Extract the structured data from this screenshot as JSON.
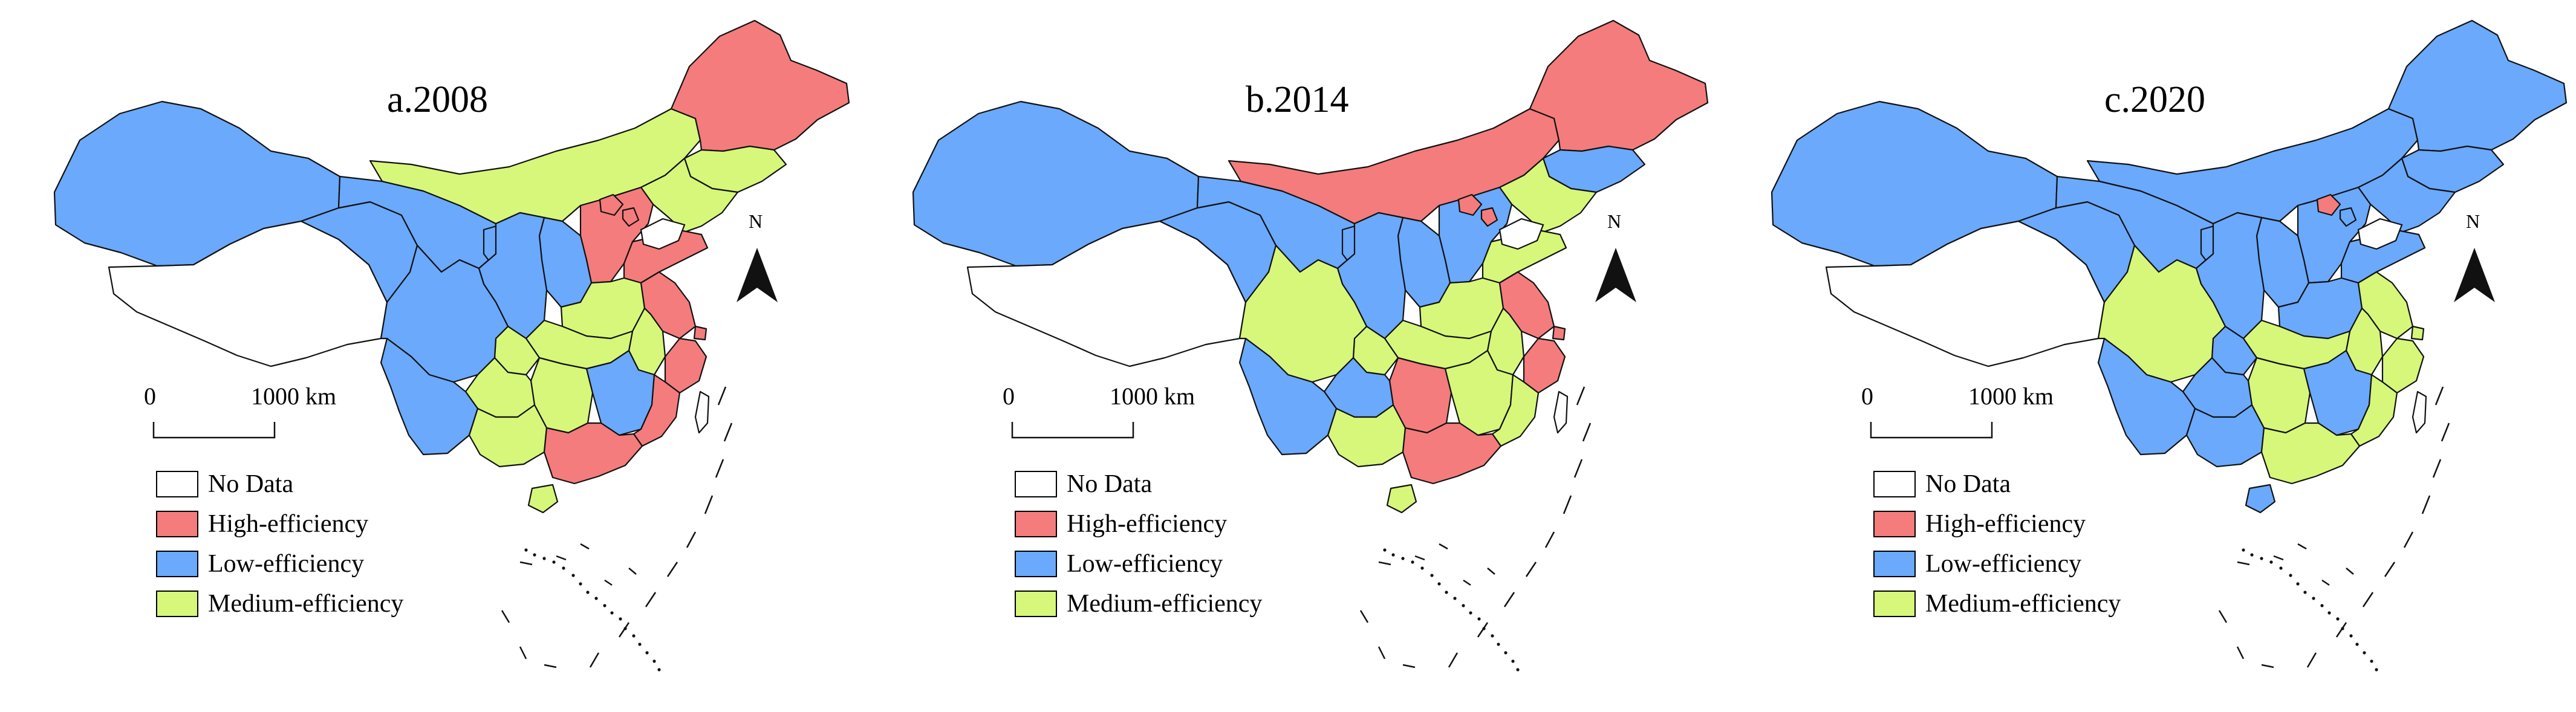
{
  "figure": {
    "colors": {
      "no_data": "#ffffff",
      "high": "#f47c7c",
      "low": "#6aa9fb",
      "medium": "#d6f77a",
      "outline": "#111111"
    },
    "legend": [
      {
        "key": "no_data",
        "label": "No Data",
        "color": "#ffffff"
      },
      {
        "key": "high",
        "label": "High-efficiency",
        "color": "#f47c7c"
      },
      {
        "key": "low",
        "label": "Low-efficiency",
        "color": "#6aa9fb"
      },
      {
        "key": "medium",
        "label": "Medium-efficiency",
        "color": "#d6f77a"
      }
    ],
    "scale_bar": {
      "start_label": "0",
      "end_label": "1000 km"
    },
    "north_arrow_label": "N",
    "panels": [
      {
        "title": "a.2008",
        "classes": {
          "xinjiang": "low",
          "tibet": "no_data",
          "qinghai": "low",
          "gansu": "low",
          "inner_mongolia": "medium",
          "heilongjiang": "high",
          "jilin": "medium",
          "liaoning": "medium",
          "beijing": "high",
          "tianjin": "high",
          "hebei": "high",
          "shanxi": "low",
          "shaanxi": "low",
          "ningxia": "low",
          "sichuan": "low",
          "chongqing": "medium",
          "yunnan": "low",
          "guizhou": "medium",
          "hunan": "medium",
          "hubei": "medium",
          "henan": "medium",
          "shandong": "high",
          "jiangsu": "high",
          "anhui": "medium",
          "zhejiang": "high",
          "jiangxi": "low",
          "fujian": "high",
          "guangdong": "high",
          "guangxi": "medium",
          "hainan": "medium",
          "shanghai": "high",
          "taiwan": "no_data"
        }
      },
      {
        "title": "b.2014",
        "classes": {
          "xinjiang": "low",
          "tibet": "no_data",
          "qinghai": "low",
          "gansu": "low",
          "inner_mongolia": "high",
          "heilongjiang": "high",
          "jilin": "low",
          "liaoning": "medium",
          "beijing": "high",
          "tianjin": "high",
          "hebei": "low",
          "shanxi": "low",
          "shaanxi": "low",
          "ningxia": "low",
          "sichuan": "medium",
          "chongqing": "medium",
          "yunnan": "low",
          "guizhou": "low",
          "hunan": "high",
          "hubei": "medium",
          "henan": "medium",
          "shandong": "medium",
          "jiangsu": "high",
          "anhui": "medium",
          "zhejiang": "high",
          "jiangxi": "medium",
          "fujian": "medium",
          "guangdong": "high",
          "guangxi": "medium",
          "hainan": "medium",
          "shanghai": "high",
          "taiwan": "no_data"
        }
      },
      {
        "title": "c.2020",
        "classes": {
          "xinjiang": "low",
          "tibet": "no_data",
          "qinghai": "low",
          "gansu": "low",
          "inner_mongolia": "low",
          "heilongjiang": "low",
          "jilin": "low",
          "liaoning": "low",
          "beijing": "high",
          "tianjin": "low",
          "hebei": "low",
          "shanxi": "low",
          "shaanxi": "low",
          "ningxia": "low",
          "sichuan": "medium",
          "chongqing": "low",
          "yunnan": "low",
          "guizhou": "low",
          "hunan": "medium",
          "hubei": "medium",
          "henan": "low",
          "shandong": "low",
          "jiangsu": "medium",
          "anhui": "medium",
          "zhejiang": "medium",
          "jiangxi": "low",
          "fujian": "medium",
          "guangdong": "medium",
          "guangxi": "low",
          "hainan": "low",
          "shanghai": "medium",
          "taiwan": "no_data"
        }
      }
    ]
  }
}
